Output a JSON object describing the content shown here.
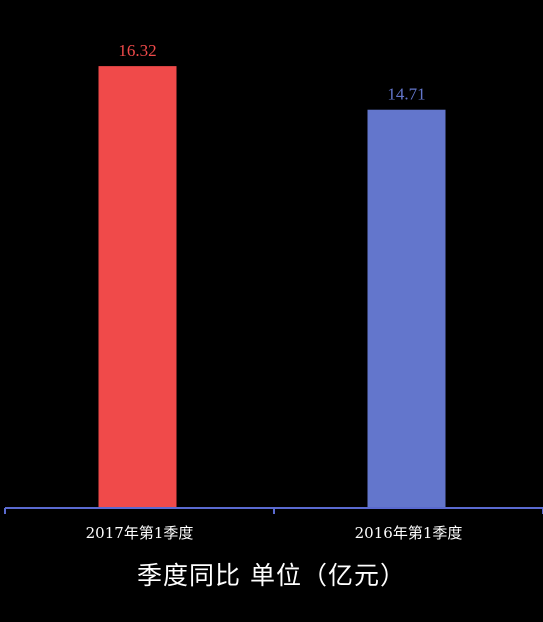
{
  "chart_data": {
    "type": "bar",
    "categories": [
      "2017年第1季度",
      "2016年第1季度"
    ],
    "values": [
      16.32,
      14.71
    ],
    "value_labels": [
      "16.32",
      "14.71"
    ],
    "bar_colors": [
      "#f04a4a",
      "#6376cc"
    ],
    "label_colors": [
      "#f04a4a",
      "#6376cc"
    ],
    "xlabel": "季度同比 单位（亿元）",
    "ylim": [
      0,
      17.1
    ],
    "axis_color": "#5a6ad0",
    "grid": false,
    "legend": "none"
  }
}
